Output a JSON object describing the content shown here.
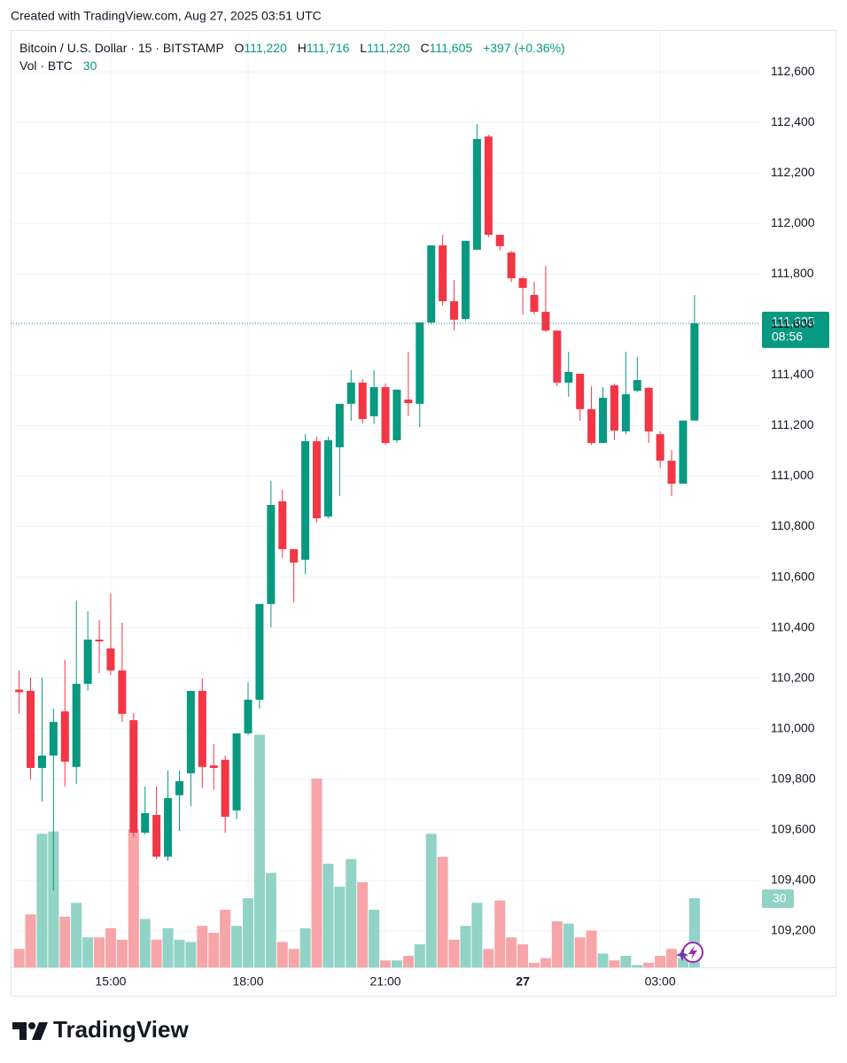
{
  "header": "Created with TradingView.com, Aug 27, 2025 03:51 UTC",
  "footer": "TradingView",
  "chart_data": {
    "type": "candlestick",
    "title": "Bitcoin / U.S. Dollar · 15 · BITSTAMP",
    "ohlc": {
      "labels": [
        "O",
        "H",
        "L",
        "C"
      ],
      "values": [
        111220,
        111716,
        111220,
        111605
      ],
      "value_labels": [
        "111,220",
        "111,716",
        "111,220",
        "111,605"
      ]
    },
    "change": {
      "values": [
        397,
        0.36
      ],
      "value_labels": [
        "+397",
        "(+0.36%)"
      ]
    },
    "volume_title": "Vol · BTC",
    "countdown": "08:56",
    "categories": [
      null,
      null,
      null,
      null,
      null,
      null,
      null,
      null,
      "15:00",
      null,
      null,
      null,
      null,
      null,
      null,
      null,
      null,
      null,
      null,
      null,
      "18:00",
      null,
      null,
      null,
      null,
      null,
      null,
      null,
      null,
      null,
      null,
      null,
      "21:00",
      null,
      null,
      null,
      null,
      null,
      null,
      null,
      null,
      null,
      null,
      null,
      "27",
      null,
      null,
      null,
      null,
      null,
      null,
      null,
      null,
      null,
      null,
      null,
      "03:00",
      null,
      null,
      null
    ],
    "open": [
      110155,
      110150,
      109845,
      109894,
      110069,
      109849,
      110178,
      110353,
      110318,
      110231,
      110034,
      109589,
      109659,
      109494,
      109737,
      109824,
      110150,
      109855,
      109877,
      109677,
      109982,
      110115,
      110494,
      110900,
      110711,
      110669,
      111138,
      110840,
      111114,
      111286,
      111370,
      111237,
      111352,
      111142,
      111303,
      111286,
      111608,
      111913,
      111692,
      111622,
      111896,
      112344,
      111955,
      111885,
      111783,
      111717,
      111650,
      111576,
      111370,
      111405,
      111265,
      111131,
      111359,
      111177,
      111338,
      111349,
      111166,
      111061,
      110970,
      111220
    ],
    "high": [
      110230,
      110203,
      110203,
      110080,
      110273,
      110507,
      110465,
      110430,
      110535,
      110420,
      110062,
      109772,
      109772,
      109835,
      109835,
      110150,
      110199,
      109940,
      109894,
      109982,
      110185,
      110494,
      110981,
      110946,
      110711,
      111166,
      111156,
      111156,
      111286,
      111419,
      111384,
      111419,
      111366,
      111342,
      111492,
      111608,
      111913,
      111955,
      111776,
      111931,
      112393,
      112351,
      111955,
      111892,
      111790,
      111769,
      111832,
      111576,
      111492,
      111405,
      111356,
      111352,
      111366,
      111492,
      111471,
      111352,
      111177,
      111103,
      111220,
      111716
    ],
    "low": [
      110060,
      109800,
      109712,
      109361,
      109772,
      109782,
      110150,
      110220,
      110213,
      110027,
      109572,
      109582,
      109484,
      109477,
      109596,
      109694,
      109765,
      109758,
      109589,
      109642,
      109975,
      110080,
      110402,
      110676,
      110500,
      110613,
      110816,
      110833,
      110921,
      111219,
      111208,
      111208,
      111124,
      111131,
      111237,
      111194,
      111601,
      111674,
      111576,
      111615,
      111896,
      111945,
      111892,
      111769,
      111640,
      111640,
      111570,
      111356,
      111314,
      111219,
      111124,
      111131,
      111142,
      111166,
      111331,
      111131,
      111033,
      110921,
      110970,
      111220
    ],
    "close": [
      110145,
      109845,
      109894,
      110027,
      109870,
      110178,
      110353,
      110346,
      110231,
      110059,
      109589,
      109666,
      109494,
      109726,
      109793,
      110150,
      109849,
      109845,
      109652,
      109982,
      110115,
      110494,
      110886,
      110711,
      110658,
      111138,
      110833,
      111142,
      111286,
      111370,
      111226,
      111352,
      111131,
      111342,
      111289,
      111608,
      111913,
      111692,
      111619,
      111931,
      112334,
      111955,
      111910,
      111783,
      111745,
      111650,
      111576,
      111370,
      111412,
      111265,
      111131,
      111310,
      111180,
      111324,
      111380,
      111177,
      111061,
      110970,
      111220,
      111605
    ],
    "volume": [
      8,
      23,
      58,
      59,
      22,
      28,
      13,
      13,
      17,
      12,
      60,
      21,
      12,
      17,
      12,
      11,
      18,
      15,
      25,
      18,
      30,
      101,
      41,
      11,
      8,
      17,
      82,
      45,
      35,
      47,
      37,
      25,
      3,
      3,
      5,
      10,
      58,
      48,
      12,
      18,
      28,
      8,
      29,
      13,
      10,
      2,
      4,
      20,
      19,
      13,
      16,
      6,
      3,
      5,
      1,
      2,
      5,
      8,
      4,
      30
    ],
    "up_color": "#089981",
    "down_color": "#f23645",
    "volume_up_color": "#91d3c6",
    "volume_down_color": "#f7a5a8",
    "ylim": [
      109056,
      112765
    ],
    "yticks": [
      {
        "value": 109200,
        "label": "109,200"
      },
      {
        "value": 109400,
        "label": "109,400"
      },
      {
        "value": 109600,
        "label": "109,600"
      },
      {
        "value": 109800,
        "label": "109,800"
      },
      {
        "value": 110000,
        "label": "110,000"
      },
      {
        "value": 110200,
        "label": "110,200"
      },
      {
        "value": 110400,
        "label": "110,400"
      },
      {
        "value": 110600,
        "label": "110,600"
      },
      {
        "value": 110800,
        "label": "110,800"
      },
      {
        "value": 111000,
        "label": "111,000"
      },
      {
        "value": 111200,
        "label": "111,200"
      },
      {
        "value": 111400,
        "label": "111,400"
      },
      {
        "value": 111600,
        "label": "111,600"
      },
      {
        "value": 111800,
        "label": "111,800"
      },
      {
        "value": 112000,
        "label": "112,000"
      },
      {
        "value": 112200,
        "label": "112,200"
      },
      {
        "value": 112400,
        "label": "112,400"
      },
      {
        "value": 112600,
        "label": "112,600"
      }
    ],
    "volume_ylim": [
      0,
      407
    ],
    "grid": true
  }
}
